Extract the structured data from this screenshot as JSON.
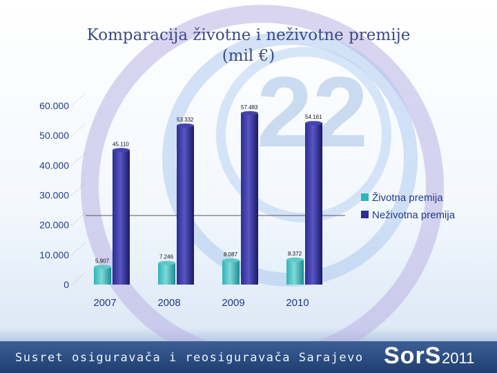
{
  "title_line1": "Komparacija životne i neživotne premije",
  "title_line2": "(mil €)",
  "footer_text": "Susret osiguravača i reosiguravača Sarajevo",
  "brand": "SorS",
  "brand_year": "2011",
  "background_number": "22",
  "colors": {
    "zivotna": "#2eb5b5",
    "nezivotna": "#2d2c93"
  },
  "chart_data": {
    "type": "bar",
    "title": "Komparacija životne i neživotne premije (mil €)",
    "categories": [
      "2007",
      "2008",
      "2009",
      "2010"
    ],
    "series": [
      {
        "name": "Životna premija",
        "values": [
          5907,
          7246,
          8087,
          8372
        ],
        "labels": [
          "5.907",
          "7.246",
          "8.087",
          "8.372"
        ]
      },
      {
        "name": "Neživotna premija",
        "values": [
          45110,
          53332,
          57483,
          54161
        ],
        "labels": [
          "45.110",
          "53.332",
          "57.483",
          "54.161"
        ]
      }
    ],
    "ylim": [
      0,
      60000
    ],
    "yticks": [
      0,
      10000,
      20000,
      30000,
      40000,
      50000,
      60000
    ],
    "ytick_labels": [
      "0",
      "10.000",
      "20.000",
      "30.000",
      "40.000",
      "50.000",
      "60.000"
    ],
    "legend_position": "right",
    "xlabel": "",
    "ylabel": ""
  }
}
